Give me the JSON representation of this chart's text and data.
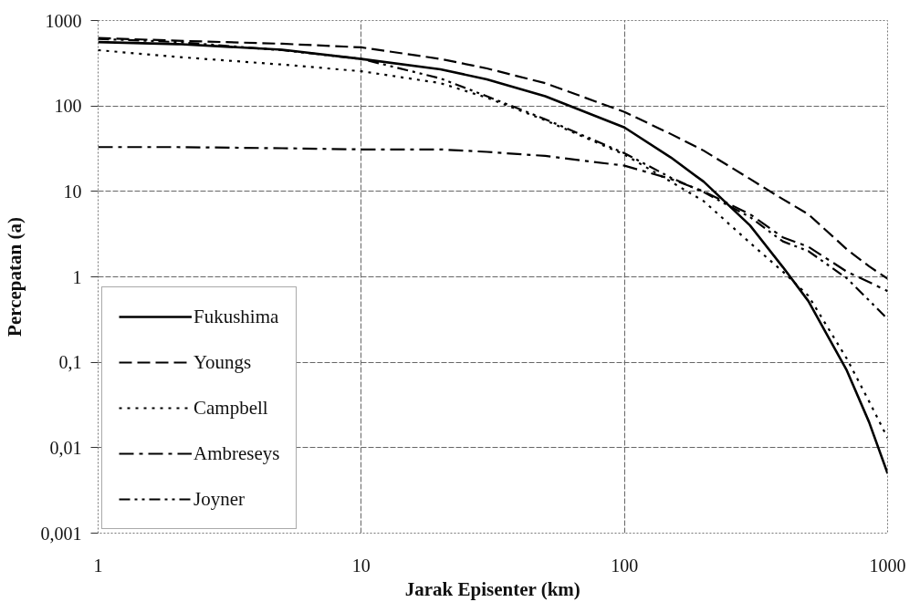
{
  "chart_data": {
    "type": "line",
    "xlabel": "Jarak Episenter (km)",
    "ylabel": "Percepatan (a)",
    "log": "xy",
    "xlim": [
      1,
      1000
    ],
    "ylim": [
      0.001,
      1000
    ],
    "xticks": [
      1,
      10,
      100,
      1000
    ],
    "yticks": [
      {
        "value": 0.001,
        "label": "0,001"
      },
      {
        "value": 0.01,
        "label": "0,01"
      },
      {
        "value": 0.1,
        "label": "0,1"
      },
      1,
      10,
      100,
      1000
    ],
    "grid": true,
    "legend": "bottom left",
    "x": [
      1,
      2,
      5,
      10,
      20,
      30,
      50,
      100,
      150,
      200,
      300,
      400,
      500,
      700,
      850,
      1000
    ],
    "series": [
      {
        "name": "Fukushima",
        "color": "#000000",
        "line_style": "solid",
        "values": [
          560,
          530,
          455,
          355,
          268,
          205,
          130,
          56,
          25,
          13,
          4.0,
          1.3,
          0.52,
          0.08,
          0.02,
          0.005
        ]
      },
      {
        "name": "Youngs",
        "color": "#000000",
        "line_style": "dashed",
        "values": [
          625,
          580,
          535,
          485,
          355,
          275,
          185,
          85,
          47,
          30,
          14,
          8.1,
          5.4,
          2.1,
          1.33,
          0.95
        ]
      },
      {
        "name": "Campbell",
        "color": "#000000",
        "line_style": "dotted",
        "values": [
          450,
          375,
          305,
          255,
          185,
          125,
          68,
          27,
          13,
          7.7,
          2.5,
          1.15,
          0.6,
          0.11,
          0.035,
          0.013
        ]
      },
      {
        "name": "Ambreseys",
        "color": "#000000",
        "line_style": "dashdot",
        "values": [
          33,
          33,
          32,
          31,
          31,
          29,
          26,
          20,
          14,
          10,
          5.4,
          2.9,
          2.25,
          1.15,
          0.87,
          0.68
        ]
      },
      {
        "name": "Joyner",
        "color": "#000000",
        "line_style": "dashdotdot",
        "values": [
          610,
          560,
          450,
          355,
          210,
          130,
          70,
          28,
          14.5,
          9.8,
          5.0,
          2.6,
          2.0,
          0.96,
          0.53,
          0.32
        ]
      }
    ]
  }
}
